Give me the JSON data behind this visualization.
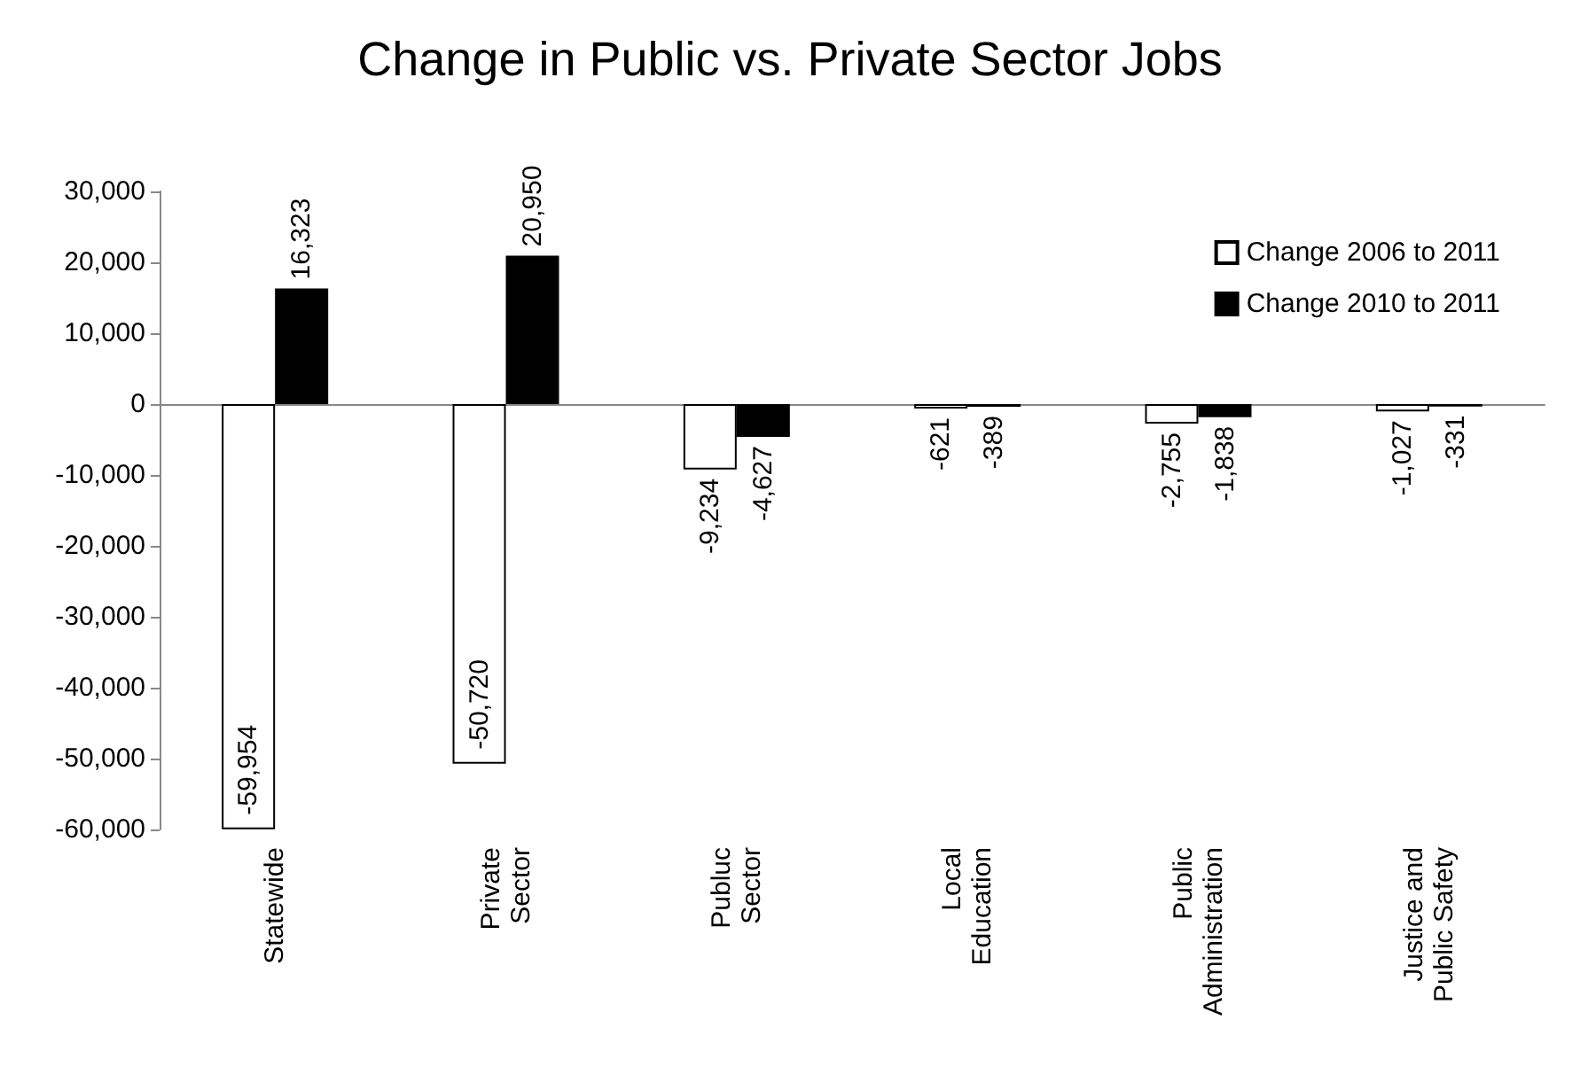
{
  "chart_data": {
    "type": "bar",
    "title": "Change in Public vs. Private Sector Jobs",
    "categories": [
      "Statewide",
      "Private\nSector",
      "Publuc\nSector",
      "Local\nEducation",
      "Public\nAdministration",
      "Justice and\nPublic Safety"
    ],
    "series": [
      {
        "name": "Change 2006 to 2011",
        "color": "#ffffff",
        "values": [
          -59954,
          -50720,
          -9234,
          -621,
          -2755,
          -1027
        ],
        "value_labels": [
          "-59,954",
          "-50,720",
          "-9,234",
          "-621",
          "-2,755",
          "-1,027"
        ]
      },
      {
        "name": "Change 2010 to 2011",
        "color": "#000000",
        "values": [
          16323,
          20950,
          -4627,
          -389,
          -1838,
          -331
        ],
        "value_labels": [
          "16,323",
          "20,950",
          "-4,627",
          "-389",
          "-1,838",
          "-331"
        ]
      }
    ],
    "ylim": [
      -60000,
      30000
    ],
    "yticks": [
      {
        "value": -60000,
        "label": "-60,000"
      },
      {
        "value": -50000,
        "label": "-50,000"
      },
      {
        "value": -40000,
        "label": "-40,000"
      },
      {
        "value": -30000,
        "label": "-30,000"
      },
      {
        "value": -20000,
        "label": "-20,000"
      },
      {
        "value": -10000,
        "label": "-10,000"
      },
      0,
      {
        "value": 10000,
        "label": "10,000"
      },
      {
        "value": 20000,
        "label": "20,000"
      },
      {
        "value": 30000,
        "label": "30,000"
      }
    ],
    "legend": "top right"
  }
}
